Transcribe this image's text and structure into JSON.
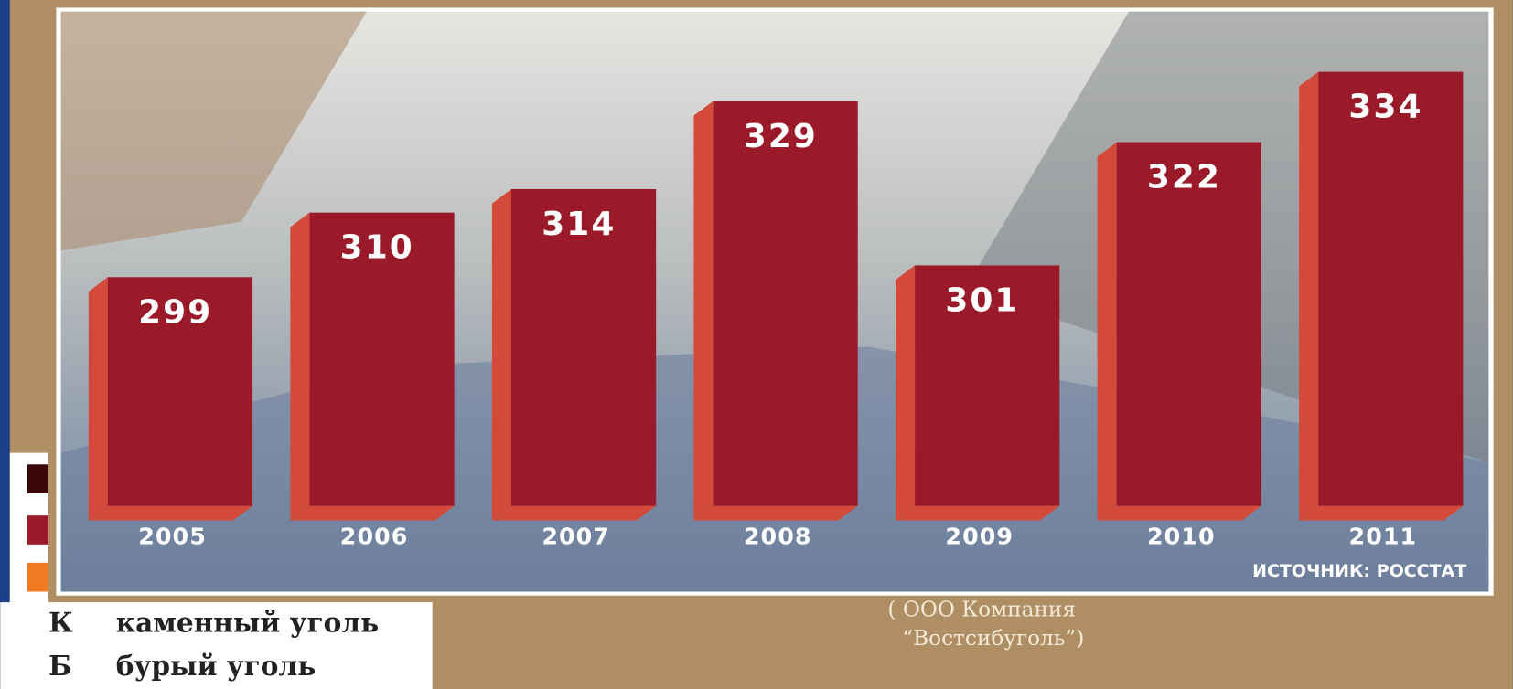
{
  "chart_data": {
    "type": "bar",
    "categories": [
      "2005",
      "2006",
      "2007",
      "2008",
      "2009",
      "2010",
      "2011"
    ],
    "values": [
      299,
      310,
      314,
      329,
      301,
      322,
      334
    ],
    "color": "#9b1a2a",
    "side_color": "#d34a3b",
    "ylim": [
      260,
      340
    ],
    "source": "ИСТОЧНИК: РОССТАТ"
  },
  "background_text": {
    "legend": [
      [
        "К",
        "каменный уголь"
      ],
      [
        "Б",
        "бурый уголь"
      ]
    ],
    "map_label": [
      "( ООО Компания",
      "“Востсибуголь”)"
    ]
  }
}
